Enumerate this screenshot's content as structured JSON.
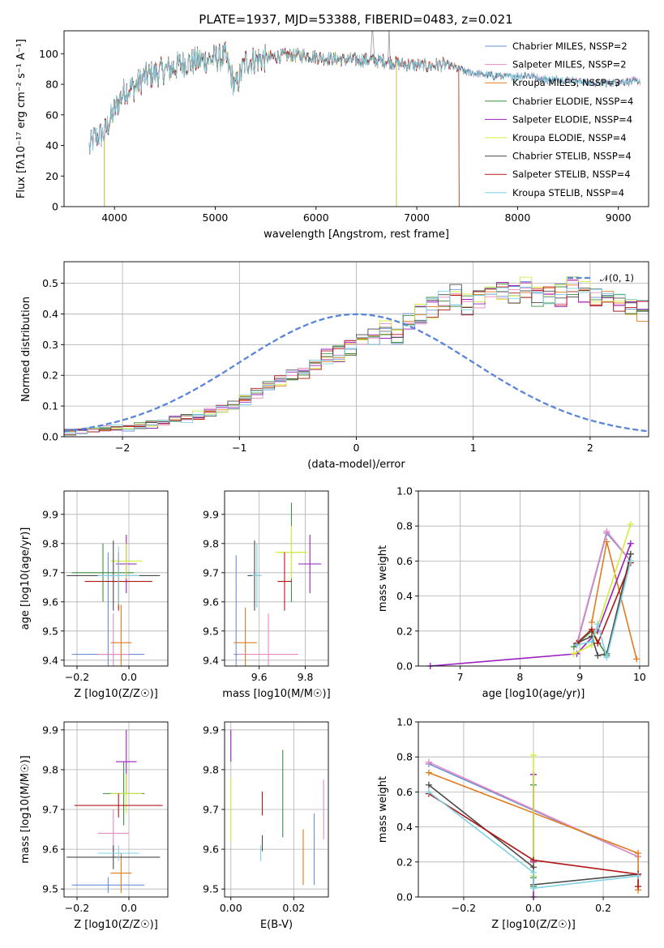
{
  "figure_title": "PLATE=1937, MJD=53388, FIBERID=0483, z=0.021",
  "colors": {
    "Chabrier MILES": "#6a8fd8",
    "Salpeter MILES": "#e68ac2",
    "Kroupa MILES": "#e07b1f",
    "Chabrier ELODIE": "#3f8f3f",
    "Salpeter ELODIE": "#9a1fbf",
    "Kroupa ELODIE": "#d4ec3c",
    "Chabrier STELIB": "#4a4a4a",
    "Salpeter STELIB": "#b01818",
    "Kroupa STELIB": "#7fd3e4"
  },
  "chart_data": [
    {
      "id": "spectrum",
      "type": "line",
      "title": "PLATE=1937, MJD=53388, FIBERID=0483, z=0.021",
      "xlabel": "wavelength [Angstrom, rest frame]",
      "ylabel": "Flux [fλ10⁻¹⁷ erg cm⁻² s⁻¹ A⁻¹]",
      "xlim": [
        3500,
        9300
      ],
      "ylim": [
        0,
        115
      ],
      "xticks": [
        4000,
        5000,
        6000,
        7000,
        8000,
        9000
      ],
      "yticks": [
        0,
        20,
        40,
        60,
        80,
        100
      ],
      "grid": false,
      "legend_position": "top-right",
      "legend": [
        "Chabrier MILES, NSSP=2",
        "Salpeter MILES, NSSP=2",
        "Kroupa MILES, NSSP=3",
        "Chabrier ELODIE, NSSP=4",
        "Salpeter ELODIE, NSSP=4",
        "Kroupa ELODIE, NSSP=4",
        "Chabrier STELIB, NSSP=4",
        "Salpeter STELIB, NSSP=4",
        "Kroupa STELIB, NSSP=4"
      ],
      "continuum": {
        "x": [
          3750,
          3800,
          3900,
          4000,
          4100,
          4200,
          4300,
          4400,
          4500,
          4700,
          4900,
          5100,
          5200,
          5300,
          5500,
          5700,
          5900,
          6100,
          6300,
          6500,
          6700,
          6900,
          7100,
          7300,
          7500,
          7700,
          7900,
          8100,
          8300,
          8500,
          8700,
          8900,
          9100,
          9200
        ],
        "y": [
          38,
          45,
          48,
          63,
          76,
          78,
          85,
          87,
          89,
          94,
          96,
          98,
          78,
          95,
          97,
          99,
          99,
          97,
          96,
          96,
          95,
          93,
          92,
          93,
          88,
          86,
          85,
          86,
          83,
          83,
          81,
          81,
          82,
          82
        ]
      },
      "series_end": {
        "Chabrier MILES": 9220,
        "Salpeter MILES": 9220,
        "Kroupa MILES": 7420,
        "Chabrier ELODIE": 6800,
        "Salpeter ELODIE": 6800,
        "Kroupa ELODIE": 6800,
        "Chabrier STELIB": 9220,
        "Salpeter STELIB": 7420,
        "Kroupa STELIB": 9220
      },
      "series_start": {
        "Chabrier MILES": 3750,
        "Salpeter MILES": 3750,
        "Kroupa MILES": 3900,
        "Chabrier ELODIE": 3900,
        "Salpeter ELODIE": 3900,
        "Kroupa ELODIE": 3900,
        "Chabrier STELIB": 3750,
        "Salpeter STELIB": 3750,
        "Kroupa STELIB": 3750
      }
    },
    {
      "id": "residuals",
      "type": "histogram",
      "xlabel": "(data-model)/error",
      "ylabel": "Normed distribution",
      "xlim": [
        -2.5,
        2.5
      ],
      "ylim": [
        0,
        0.57
      ],
      "xticks": [
        -2,
        -1,
        0,
        1,
        2
      ],
      "yticks": [
        0.0,
        0.1,
        0.2,
        0.3,
        0.4,
        0.5
      ],
      "grid": true,
      "legend_position": "top-right",
      "legend": [
        "𝒩(0, 1)"
      ],
      "bin_width": 0.1,
      "base_heights": [
        0.015,
        0.018,
        0.02,
        0.025,
        0.028,
        0.03,
        0.035,
        0.04,
        0.045,
        0.055,
        0.06,
        0.07,
        0.08,
        0.09,
        0.1,
        0.12,
        0.14,
        0.16,
        0.18,
        0.2,
        0.21,
        0.23,
        0.26,
        0.27,
        0.29,
        0.31,
        0.33,
        0.35,
        0.33,
        0.38,
        0.4,
        0.42,
        0.44,
        0.46,
        0.43,
        0.44,
        0.46,
        0.48,
        0.47,
        0.49,
        0.46,
        0.47,
        0.46,
        0.49,
        0.47,
        0.45,
        0.44,
        0.43,
        0.42,
        0.41,
        0.39,
        0.37,
        0.36,
        0.33,
        0.34,
        0.32,
        0.29,
        0.27,
        0.24,
        0.22,
        0.2,
        0.18,
        0.16,
        0.14,
        0.12,
        0.11,
        0.09,
        0.08,
        0.065,
        0.06,
        0.05,
        0.045,
        0.04,
        0.035,
        0.03,
        0.03,
        0.028,
        0.025,
        0.022,
        0.02
      ],
      "normal_curve": {
        "mean": 0,
        "sigma": 1
      }
    },
    {
      "id": "age-vs-Z",
      "type": "scatter",
      "xlabel": "Z [log10(Z/Z☉)]",
      "ylabel": "age  [log10(age/yr)]",
      "xlim": [
        -0.25,
        0.15
      ],
      "ylim": [
        9.38,
        9.98
      ],
      "xticks": [
        -0.2,
        0.0
      ],
      "yticks": [
        9.4,
        9.5,
        9.6,
        9.7,
        9.8,
        9.9
      ],
      "grid": true,
      "points": [
        {
          "series": "Chabrier MILES",
          "x": -0.08,
          "y": 9.42,
          "xerr": 0.14,
          "yerr": 0.35
        },
        {
          "series": "Salpeter MILES",
          "x": -0.06,
          "y": 9.42,
          "xerr": 0.06,
          "yerr": 0.14
        },
        {
          "series": "Kroupa MILES",
          "x": -0.03,
          "y": 9.46,
          "xerr": 0.04,
          "yerr": 0.13
        },
        {
          "series": "Chabrier ELODIE",
          "x": -0.1,
          "y": 9.7,
          "xerr": 0.12,
          "yerr": 0.1
        },
        {
          "series": "Salpeter ELODIE",
          "x": -0.01,
          "y": 9.73,
          "xerr": 0.04,
          "yerr": 0.1
        },
        {
          "series": "Kroupa ELODIE",
          "x": -0.01,
          "y": 9.74,
          "xerr": 0.06,
          "yerr": 0.06
        },
        {
          "series": "Chabrier STELIB",
          "x": -0.06,
          "y": 9.69,
          "xerr": 0.18,
          "yerr": 0.12
        },
        {
          "series": "Salpeter STELIB",
          "x": -0.04,
          "y": 9.67,
          "xerr": 0.13,
          "yerr": 0.1
        },
        {
          "series": "Kroupa STELIB",
          "x": -0.04,
          "y": 9.69,
          "xerr": 0.08,
          "yerr": 0.1
        }
      ]
    },
    {
      "id": "age-vs-mass",
      "type": "scatter",
      "xlabel": "mass [log10(M/M☉)]",
      "ylabel": "",
      "xlim": [
        9.45,
        9.9
      ],
      "ylim": [
        9.38,
        9.98
      ],
      "xticks": [
        9.6,
        9.8
      ],
      "yticks": [
        9.4,
        9.5,
        9.6,
        9.7,
        9.8,
        9.9
      ],
      "grid": true,
      "points": [
        {
          "series": "Chabrier MILES",
          "x": 9.5,
          "y": 9.42,
          "xerr": 0.01,
          "yerr": 0.34
        },
        {
          "series": "Salpeter MILES",
          "x": 9.64,
          "y": 9.42,
          "xerr": 0.13,
          "yerr": 0.14
        },
        {
          "series": "Kroupa MILES",
          "x": 9.54,
          "y": 9.46,
          "xerr": 0.05,
          "yerr": 0.12
        },
        {
          "series": "Chabrier ELODIE",
          "x": 9.74,
          "y": 9.77,
          "xerr": 0.05,
          "yerr": 0.17
        },
        {
          "series": "Salpeter ELODIE",
          "x": 9.82,
          "y": 9.73,
          "xerr": 0.05,
          "yerr": 0.1
        },
        {
          "series": "Kroupa ELODIE",
          "x": 9.74,
          "y": 9.77,
          "xerr": 0.07,
          "yerr": 0.09
        },
        {
          "series": "Chabrier STELIB",
          "x": 9.58,
          "y": 9.69,
          "xerr": 0.03,
          "yerr": 0.12
        },
        {
          "series": "Salpeter STELIB",
          "x": 9.71,
          "y": 9.67,
          "xerr": 0.03,
          "yerr": 0.1
        },
        {
          "series": "Kroupa STELIB",
          "x": 9.59,
          "y": 9.69,
          "xerr": 0.02,
          "yerr": 0.11
        }
      ]
    },
    {
      "id": "mass-weight-vs-age",
      "type": "line",
      "xlabel": "age  [log10(age/yr)]",
      "ylabel": "mass weight",
      "xlim": [
        6.3,
        10.15
      ],
      "ylim": [
        0,
        1.0
      ],
      "xticks": [
        7,
        8,
        9,
        10
      ],
      "yticks": [
        0.0,
        0.2,
        0.4,
        0.6,
        0.8,
        1.0
      ],
      "grid": true,
      "series": [
        {
          "name": "Chabrier MILES",
          "x": [
            8.95,
            9.45,
            9.85
          ],
          "y": [
            0.12,
            0.76,
            0.6
          ]
        },
        {
          "name": "Salpeter MILES",
          "x": [
            8.95,
            9.45,
            9.85
          ],
          "y": [
            0.13,
            0.77,
            0.6
          ]
        },
        {
          "name": "Kroupa MILES",
          "x": [
            9.2,
            9.45,
            9.95
          ],
          "y": [
            0.25,
            0.71,
            0.04
          ]
        },
        {
          "name": "Chabrier ELODIE",
          "x": [
            8.9,
            9.2,
            9.45,
            9.85
          ],
          "y": [
            0.11,
            0.2,
            0.06,
            0.64
          ]
        },
        {
          "name": "Salpeter ELODIE",
          "x": [
            6.5,
            8.95,
            9.3,
            9.85
          ],
          "y": [
            0.0,
            0.07,
            0.2,
            0.7
          ]
        },
        {
          "name": "Kroupa ELODIE",
          "x": [
            8.9,
            9.2,
            9.85
          ],
          "y": [
            0.07,
            0.12,
            0.81
          ]
        },
        {
          "name": "Chabrier STELIB",
          "x": [
            8.95,
            9.2,
            9.3,
            9.45,
            9.85
          ],
          "y": [
            0.13,
            0.17,
            0.06,
            0.07,
            0.64
          ]
        },
        {
          "name": "Salpeter STELIB",
          "x": [
            8.95,
            9.2,
            9.3,
            9.85
          ],
          "y": [
            0.13,
            0.21,
            0.13,
            0.59
          ]
        },
        {
          "name": "Kroupa STELIB",
          "x": [
            8.95,
            9.2,
            9.3,
            9.45,
            9.85
          ],
          "y": [
            0.12,
            0.14,
            0.24,
            0.05,
            0.6
          ]
        }
      ]
    },
    {
      "id": "mass-vs-Z",
      "type": "scatter",
      "xlabel": "Z [log10(Z/Z☉)]",
      "ylabel": "mass [log10(M/M☉)]",
      "xlim": [
        -0.25,
        0.15
      ],
      "ylim": [
        9.48,
        9.92
      ],
      "xticks": [
        -0.2,
        0.0
      ],
      "yticks": [
        9.5,
        9.6,
        9.7,
        9.8,
        9.9
      ],
      "grid": true,
      "points": [
        {
          "series": "Chabrier MILES",
          "x": -0.08,
          "y": 9.51,
          "xerr": 0.14,
          "yerr": 0.02
        },
        {
          "series": "Salpeter MILES",
          "x": -0.06,
          "y": 9.64,
          "xerr": 0.06,
          "yerr": 0.06
        },
        {
          "series": "Kroupa MILES",
          "x": -0.03,
          "y": 9.54,
          "xerr": 0.04,
          "yerr": 0.05
        },
        {
          "series": "Chabrier ELODIE",
          "x": -0.02,
          "y": 9.74,
          "xerr": 0.08,
          "yerr": 0.08
        },
        {
          "series": "Salpeter ELODIE",
          "x": -0.01,
          "y": 9.82,
          "xerr": 0.04,
          "yerr": 0.08
        },
        {
          "series": "Kroupa ELODIE",
          "x": -0.01,
          "y": 9.74,
          "xerr": 0.06,
          "yerr": 0.05
        },
        {
          "series": "Chabrier STELIB",
          "x": -0.06,
          "y": 9.58,
          "xerr": 0.18,
          "yerr": 0.03
        },
        {
          "series": "Salpeter STELIB",
          "x": -0.04,
          "y": 9.71,
          "xerr": 0.17,
          "yerr": 0.03
        },
        {
          "series": "Kroupa STELIB",
          "x": -0.04,
          "y": 9.59,
          "xerr": 0.08,
          "yerr": 0.02
        }
      ]
    },
    {
      "id": "mass-vs-ebv",
      "type": "scatter",
      "xlabel": "E(B-V)",
      "ylabel": "",
      "xlim": [
        -0.002,
        0.031
      ],
      "ylim": [
        9.48,
        9.92
      ],
      "xticks": [
        0.0,
        0.02
      ],
      "yticks": [
        9.5,
        9.6,
        9.7,
        9.8,
        9.9
      ],
      "grid": true,
      "points": [
        {
          "series": "Chabrier MILES",
          "x": 0.0265,
          "y": 9.6,
          "xerr": 0,
          "yerr": 0.09
        },
        {
          "series": "Salpeter MILES",
          "x": 0.0295,
          "y": 9.7,
          "xerr": 0,
          "yerr": 0.075
        },
        {
          "series": "Kroupa MILES",
          "x": 0.023,
          "y": 9.58,
          "xerr": 0,
          "yerr": 0.07
        },
        {
          "series": "Chabrier ELODIE",
          "x": 0.0165,
          "y": 9.74,
          "xerr": 0,
          "yerr": 0.11
        },
        {
          "series": "Salpeter ELODIE",
          "x": 0.0,
          "y": 9.86,
          "xerr": 0,
          "yerr": 0.04
        },
        {
          "series": "Kroupa ELODIE",
          "x": 0.0,
          "y": 9.7,
          "xerr": 0,
          "yerr": 0.08
        },
        {
          "series": "Chabrier STELIB",
          "x": 0.01,
          "y": 9.615,
          "xerr": 0,
          "yerr": 0.02
        },
        {
          "series": "Salpeter STELIB",
          "x": 0.01,
          "y": 9.715,
          "xerr": 0,
          "yerr": 0.03
        },
        {
          "series": "Kroupa STELIB",
          "x": 0.0095,
          "y": 9.59,
          "xerr": 0,
          "yerr": 0.02
        }
      ]
    },
    {
      "id": "mass-weight-vs-Z",
      "type": "line",
      "xlabel": "Z [log10(Z/Z☉)]",
      "ylabel": "mass weight",
      "xlim": [
        -0.33,
        0.33
      ],
      "ylim": [
        0,
        1.0
      ],
      "xticks": [
        -0.2,
        0.0,
        0.2
      ],
      "yticks": [
        0.0,
        0.2,
        0.4,
        0.6,
        0.8,
        1.0
      ],
      "grid": true,
      "series": [
        {
          "name": "Chabrier MILES",
          "x": [
            -0.3,
            0.3
          ],
          "y": [
            0.76,
            0.23
          ]
        },
        {
          "name": "Salpeter MILES",
          "x": [
            -0.3,
            0.3
          ],
          "y": [
            0.77,
            0.23
          ]
        },
        {
          "name": "Kroupa MILES",
          "x": [
            -0.3,
            0.3,
            0.3
          ],
          "y": [
            0.71,
            0.25,
            0.04
          ]
        },
        {
          "name": "Chabrier ELODIE",
          "x": [
            0.0,
            0.0,
            0.0,
            0.0
          ],
          "y": [
            0.06,
            0.11,
            0.2,
            0.64
          ]
        },
        {
          "name": "Salpeter ELODIE",
          "x": [
            0.0,
            0.0,
            0.0,
            0.0
          ],
          "y": [
            0.0,
            0.07,
            0.2,
            0.7
          ]
        },
        {
          "name": "Kroupa ELODIE",
          "x": [
            0.0,
            0.0,
            0.0
          ],
          "y": [
            0.07,
            0.12,
            0.81
          ]
        },
        {
          "name": "Chabrier STELIB",
          "x": [
            -0.3,
            0.0,
            0.0,
            0.3
          ],
          "y": [
            0.64,
            0.17,
            0.07,
            0.13
          ]
        },
        {
          "name": "Salpeter STELIB",
          "x": [
            -0.3,
            0.0,
            0.3,
            0.3
          ],
          "y": [
            0.59,
            0.21,
            0.13,
            0.06
          ]
        },
        {
          "name": "Kroupa STELIB",
          "x": [
            -0.3,
            0.0,
            0.0,
            0.3
          ],
          "y": [
            0.6,
            0.14,
            0.05,
            0.12
          ]
        }
      ]
    }
  ]
}
